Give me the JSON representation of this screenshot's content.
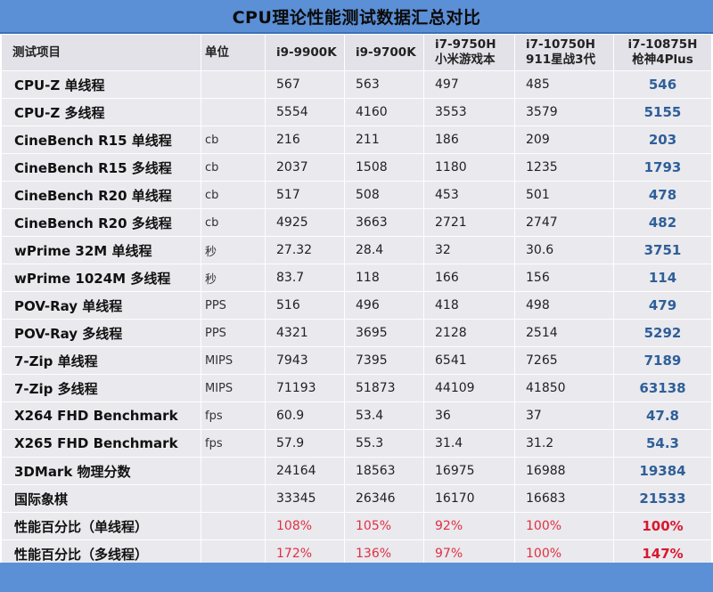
{
  "title": "CPU理论性能测试数据汇总对比",
  "header": {
    "item": "测试项目",
    "unit": "单位",
    "cols": [
      {
        "line1": "i9-9900K",
        "line2": ""
      },
      {
        "line1": "i9-9700K",
        "line2": ""
      },
      {
        "line1": "i7-9750H",
        "line2": "小米游戏本"
      },
      {
        "line1": "i7-10750H",
        "line2": "911星战3代"
      },
      {
        "line1": "i7-10875H",
        "line2": "枪神4Plus"
      }
    ]
  },
  "rows": [
    {
      "name": "CPU-Z 单线程",
      "unit": "",
      "v": [
        "567",
        "563",
        "497",
        "485",
        "546"
      ]
    },
    {
      "name": "CPU-Z 多线程",
      "unit": "",
      "v": [
        "5554",
        "4160",
        "3553",
        "3579",
        "5155"
      ]
    },
    {
      "name": "CineBench R15 单线程",
      "unit": "cb",
      "v": [
        "216",
        "211",
        "186",
        "209",
        "203"
      ]
    },
    {
      "name": "CineBench R15 多线程",
      "unit": "cb",
      "v": [
        "2037",
        "1508",
        "1180",
        "1235",
        "1793"
      ]
    },
    {
      "name": "CineBench R20 单线程",
      "unit": "cb",
      "v": [
        "517",
        "508",
        "453",
        "501",
        "478"
      ]
    },
    {
      "name": "CineBench R20 多线程",
      "unit": "cb",
      "v": [
        "4925",
        "3663",
        "2721",
        "2747",
        "482"
      ]
    },
    {
      "name": "wPrime 32M 单线程",
      "unit": "秒",
      "v": [
        "27.32",
        "28.4",
        "32",
        "30.6",
        "3751"
      ]
    },
    {
      "name": "wPrime 1024M 多线程",
      "unit": "秒",
      "v": [
        "83.7",
        "118",
        "166",
        "156",
        "114"
      ]
    },
    {
      "name": "POV-Ray 单线程",
      "unit": "PPS",
      "v": [
        "516",
        "496",
        "418",
        "498",
        "479"
      ]
    },
    {
      "name": "POV-Ray 多线程",
      "unit": "PPS",
      "v": [
        "4321",
        "3695",
        "2128",
        "2514",
        "5292"
      ]
    },
    {
      "name": "7-Zip 单线程",
      "unit": "MIPS",
      "v": [
        "7943",
        "7395",
        "6541",
        "7265",
        "7189"
      ]
    },
    {
      "name": "7-Zip 多线程",
      "unit": "MIPS",
      "v": [
        "71193",
        "51873",
        "44109",
        "41850",
        "63138"
      ]
    },
    {
      "name": "X264 FHD Benchmark",
      "unit": "fps",
      "v": [
        "60.9",
        "53.4",
        "36",
        "37",
        "47.8"
      ]
    },
    {
      "name": "X265 FHD Benchmark",
      "unit": "fps",
      "v": [
        "57.9",
        "55.3",
        "31.4",
        "31.2",
        "54.3"
      ]
    },
    {
      "name": "3DMark 物理分数",
      "unit": "",
      "v": [
        "24164",
        "18563",
        "16975",
        "16988",
        "19384"
      ]
    },
    {
      "name": "国际象棋",
      "unit": "",
      "v": [
        "33345",
        "26346",
        "16170",
        "16683",
        "21533"
      ]
    },
    {
      "name": "性能百分比（单线程）",
      "unit": "",
      "pct": true,
      "v": [
        "108%",
        "105%",
        "92%",
        "100%",
        "100%"
      ]
    },
    {
      "name": "性能百分比（多线程）",
      "unit": "",
      "pct": true,
      "v": [
        "172%",
        "136%",
        "97%",
        "100%",
        "147%"
      ]
    }
  ],
  "colors": {
    "bar": "#5b8fd6",
    "cell": "#e9e9ee",
    "highlight_value": "#2f5f98",
    "percent": "#e03040"
  }
}
